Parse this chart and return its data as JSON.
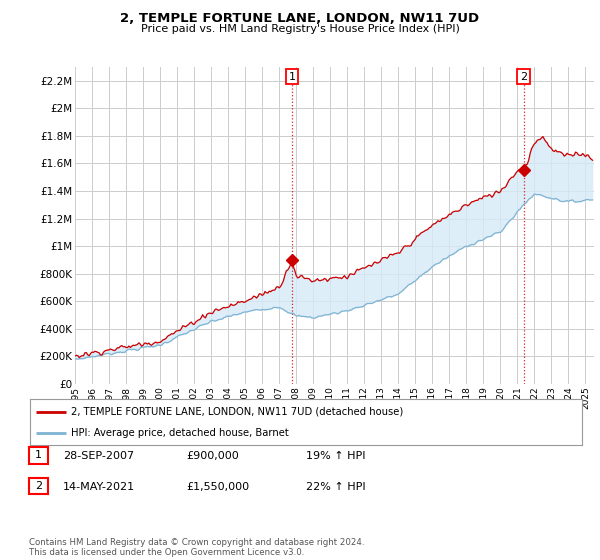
{
  "title": "2, TEMPLE FORTUNE LANE, LONDON, NW11 7UD",
  "subtitle": "Price paid vs. HM Land Registry's House Price Index (HPI)",
  "ylim": [
    0,
    2300000
  ],
  "yticks": [
    0,
    200000,
    400000,
    600000,
    800000,
    1000000,
    1200000,
    1400000,
    1600000,
    1800000,
    2000000,
    2200000
  ],
  "ytick_labels": [
    "£0",
    "£200K",
    "£400K",
    "£600K",
    "£800K",
    "£1M",
    "£1.2M",
    "£1.4M",
    "£1.6M",
    "£1.8M",
    "£2M",
    "£2.2M"
  ],
  "xlim_start": 1995.0,
  "xlim_end": 2025.5,
  "red_line_color": "#cc0000",
  "blue_line_color": "#7fb3d3",
  "fill_color": "#d6eaf8",
  "sale1_x": 2007.75,
  "sale1_y": 900000,
  "sale2_x": 2021.37,
  "sale2_y": 1550000,
  "legend_red_label": "2, TEMPLE FORTUNE LANE, LONDON, NW11 7UD (detached house)",
  "legend_blue_label": "HPI: Average price, detached house, Barnet",
  "table_row1": [
    "1",
    "28-SEP-2007",
    "£900,000",
    "19% ↑ HPI"
  ],
  "table_row2": [
    "2",
    "14-MAY-2021",
    "£1,550,000",
    "22% ↑ HPI"
  ],
  "footer": "Contains HM Land Registry data © Crown copyright and database right 2024.\nThis data is licensed under the Open Government Licence v3.0.",
  "background_color": "#ffffff",
  "grid_color": "#cccccc"
}
